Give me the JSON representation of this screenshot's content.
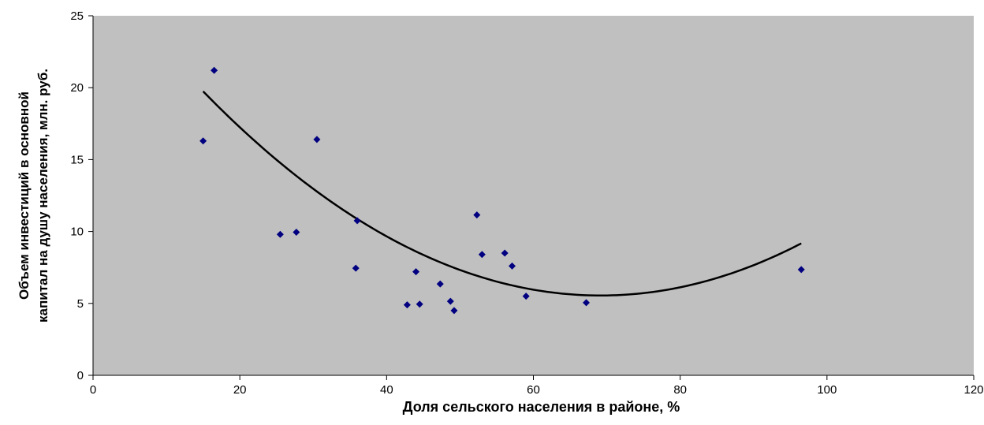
{
  "chart_data": {
    "type": "scatter",
    "xlabel": "Доля сельского населения в районе, %",
    "ylabel_lines": [
      "Объем инвестиций в основной",
      "капитал на душу населения, млн. руб."
    ],
    "xlim": [
      0,
      120
    ],
    "ylim": [
      0,
      25
    ],
    "x_ticks": [
      "0",
      "20",
      "40",
      "60",
      "80",
      "100",
      "120"
    ],
    "y_ticks": [
      "0",
      "5",
      "10",
      "15",
      "20",
      "25"
    ],
    "grid": false,
    "legend": "none",
    "colors": {
      "plot_background": "#c0c0c0",
      "point": "#000080",
      "trendline": "#000000",
      "axis": "#000000"
    },
    "series": [
      {
        "points": [
          {
            "x": 15.0,
            "y": 16.3
          },
          {
            "x": 16.5,
            "y": 21.2
          },
          {
            "x": 25.5,
            "y": 9.8
          },
          {
            "x": 27.7,
            "y": 9.95
          },
          {
            "x": 30.5,
            "y": 16.4
          },
          {
            "x": 35.8,
            "y": 7.45
          },
          {
            "x": 36.0,
            "y": 10.75
          },
          {
            "x": 42.8,
            "y": 4.9
          },
          {
            "x": 44.0,
            "y": 7.2
          },
          {
            "x": 44.5,
            "y": 4.95
          },
          {
            "x": 47.3,
            "y": 6.35
          },
          {
            "x": 48.7,
            "y": 5.15
          },
          {
            "x": 49.2,
            "y": 4.5
          },
          {
            "x": 52.3,
            "y": 11.15
          },
          {
            "x": 53.0,
            "y": 8.4
          },
          {
            "x": 56.1,
            "y": 8.5
          },
          {
            "x": 57.1,
            "y": 7.6
          },
          {
            "x": 59.0,
            "y": 5.5
          },
          {
            "x": 67.2,
            "y": 5.05
          },
          {
            "x": 96.5,
            "y": 7.35
          }
        ]
      }
    ],
    "trendline": {
      "type": "polynomial",
      "order": 2,
      "coefficients": [
        28.7,
        -0.6696,
        0.004842
      ],
      "x_range": [
        15,
        96.5
      ]
    }
  }
}
